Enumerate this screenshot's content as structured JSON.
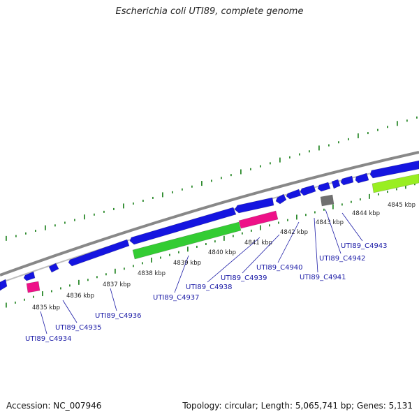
{
  "title": "Escherichia coli UTI89, complete genome",
  "footer": {
    "accession": "Accession: NC_007946",
    "stats": "Topology: circular; Length: 5,065,741 bp; Genes: 5,131"
  },
  "colors": {
    "backbone": "#888888",
    "tick": "#2e8b2e",
    "gene_blue": "#1515e0",
    "gene_green": "#33cc33",
    "gene_pink": "#ee1188",
    "gene_gray": "#707070",
    "gene_lime": "#99ee22",
    "label": "#1a1aa6"
  },
  "scale_labels": [
    "4835 kbp",
    "4836 kbp",
    "4837 kbp",
    "4838 kbp",
    "4839 kbp",
    "4840 kbp",
    "4841 kbp",
    "4842 kbp",
    "4843 kbp",
    "4844 kbp",
    "4845 kbp"
  ],
  "gene_labels": [
    "UTI89_C4934",
    "UTI89_C4935",
    "UTI89_C4936",
    "UTI89_C4937",
    "UTI89_C4938",
    "UTI89_C4939",
    "UTI89_C4940",
    "UTI89_C4941",
    "UTI89_C4942",
    "UTI89_C4943"
  ]
}
